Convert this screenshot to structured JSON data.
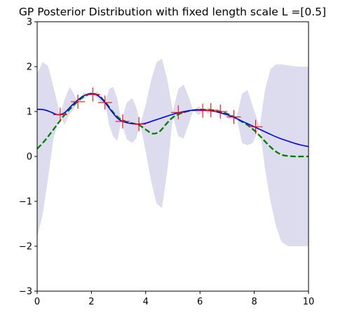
{
  "chart_data": {
    "type": "line",
    "title": "GP Posterior Distribution with fixed length scale L =[0.5]",
    "xlabel": "",
    "ylabel": "",
    "xlim": [
      0,
      10
    ],
    "ylim": [
      -3,
      3
    ],
    "x_ticks": [
      0,
      2,
      4,
      6,
      8,
      10
    ],
    "y_ticks": [
      -3,
      -2,
      -1,
      0,
      1,
      2,
      3
    ],
    "x_tick_labels": [
      "0",
      "2",
      "4",
      "6",
      "8",
      "10"
    ],
    "y_tick_labels": [
      "−3",
      "−2",
      "−1",
      "0",
      "1",
      "2",
      "3"
    ],
    "grid": false,
    "legend": "none",
    "colors": {
      "mean": "#0000ff",
      "truth": "#008000",
      "band": "#dcdcee",
      "observations": "#ff0000"
    },
    "x": [
      0,
      0.25,
      0.5,
      0.75,
      1.0,
      1.25,
      1.5,
      1.75,
      2.0,
      2.25,
      2.5,
      2.75,
      3.0,
      3.25,
      3.5,
      3.75,
      4.0,
      4.25,
      4.5,
      4.75,
      5.0,
      5.25,
      5.5,
      5.75,
      6.0,
      6.25,
      6.5,
      6.75,
      7.0,
      7.25,
      7.5,
      7.75,
      8.0,
      8.25,
      8.5,
      8.75,
      9.0,
      9.25,
      9.5,
      9.75,
      10.0
    ],
    "series": [
      {
        "role": "mean",
        "values": [
          1.05,
          1.04,
          0.99,
          0.93,
          0.97,
          1.12,
          1.26,
          1.36,
          1.4,
          1.35,
          1.2,
          1.0,
          0.83,
          0.76,
          0.73,
          0.72,
          0.74,
          0.79,
          0.84,
          0.89,
          0.94,
          0.98,
          1.01,
          1.03,
          1.04,
          1.03,
          1.01,
          0.97,
          0.93,
          0.87,
          0.8,
          0.73,
          0.66,
          0.59,
          0.52,
          0.45,
          0.39,
          0.34,
          0.29,
          0.25,
          0.22
        ]
      },
      {
        "role": "truth",
        "values": [
          0.17,
          0.33,
          0.52,
          0.72,
          0.92,
          1.08,
          1.23,
          1.34,
          1.4,
          1.36,
          1.22,
          1.02,
          0.86,
          0.78,
          0.74,
          0.7,
          0.6,
          0.51,
          0.55,
          0.72,
          0.87,
          0.95,
          1.0,
          1.03,
          1.04,
          1.04,
          1.03,
          1.0,
          0.95,
          0.88,
          0.79,
          0.7,
          0.58,
          0.43,
          0.27,
          0.13,
          0.04,
          0.01,
          0.0,
          0.0,
          0.0
        ]
      }
    ],
    "band": {
      "x": [
        0,
        0.2,
        0.4,
        0.6,
        0.85,
        1.0,
        1.2,
        1.35,
        1.5,
        1.7,
        1.9,
        2.05,
        2.2,
        2.35,
        2.5,
        2.65,
        2.8,
        2.95,
        3.1,
        3.3,
        3.5,
        3.65,
        3.8,
        4.0,
        4.2,
        4.4,
        4.6,
        4.8,
        5.0,
        5.2,
        5.4,
        5.6,
        5.75,
        5.95,
        6.15,
        6.3,
        6.5,
        6.7,
        6.9,
        7.1,
        7.35,
        7.55,
        7.75,
        7.95,
        8.2,
        8.4,
        8.6,
        8.8,
        9.0,
        9.25,
        9.5,
        9.75,
        10.0
      ],
      "upper": [
        1.85,
        2.1,
        2.02,
        1.55,
        0.93,
        1.25,
        1.55,
        1.4,
        1.22,
        1.42,
        1.4,
        1.38,
        1.45,
        1.38,
        1.2,
        1.5,
        1.55,
        1.3,
        0.78,
        1.2,
        1.3,
        1.1,
        0.72,
        1.15,
        1.7,
        2.1,
        2.18,
        1.7,
        1.0,
        1.5,
        1.6,
        1.3,
        1.02,
        1.12,
        1.02,
        1.1,
        1.0,
        1.0,
        1.0,
        0.95,
        0.87,
        1.4,
        1.48,
        1.1,
        0.66,
        1.5,
        1.95,
        2.05,
        2.05,
        2.03,
        2.01,
        2.0,
        2.0
      ],
      "lower": [
        -1.8,
        -1.3,
        -0.5,
        0.4,
        0.93,
        0.7,
        0.95,
        1.05,
        1.22,
        1.28,
        1.35,
        1.38,
        1.3,
        1.2,
        1.2,
        0.7,
        0.45,
        0.35,
        0.78,
        0.38,
        0.3,
        0.4,
        0.72,
        0.1,
        -0.55,
        -1.05,
        -1.15,
        -0.3,
        0.9,
        0.45,
        0.4,
        0.75,
        1.02,
        0.92,
        1.02,
        0.95,
        1.0,
        1.0,
        0.9,
        0.82,
        0.87,
        0.3,
        0.25,
        0.3,
        0.66,
        -0.3,
        -1.0,
        -1.55,
        -1.9,
        -2.0,
        -2.0,
        -2.0,
        -2.0
      ]
    },
    "observations": {
      "x": [
        0.85,
        1.5,
        2.05,
        2.5,
        3.15,
        3.75,
        5.2,
        6.1,
        6.4,
        6.75,
        7.25,
        8.05
      ],
      "y": [
        0.93,
        1.22,
        1.38,
        1.2,
        0.78,
        0.72,
        0.98,
        1.02,
        1.03,
        1.0,
        0.88,
        0.66
      ]
    }
  }
}
